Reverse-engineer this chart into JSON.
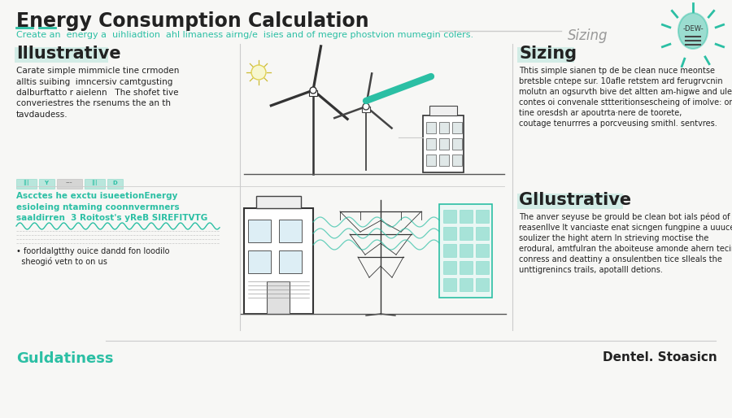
{
  "title": "Energy Consumption Calculation",
  "subtitle": "Create an  energy a  uihliadtion  ahl limaness airng/e  isies and of megre phostvion mumegin colers.",
  "subtitle_teal_part": "Create an",
  "subtitle_color": "#2bbfa4",
  "title_color": "#1a1a1a",
  "background_color": "#f7f7f5",
  "teal_color": "#2bbfa4",
  "dark_color": "#222222",
  "gray_color": "#999999",
  "light_gray": "#cccccc",
  "top_right_label": "Sizing",
  "section1_title": "Illustrative",
  "section1_lines": [
    "Carate simple mimmicle tine crmoden",
    "alltis suibing  imncersiv camtgusting",
    "dalburftatto r aielenn   The shofet tive",
    "converiestres the rsenums the an th",
    "tavdaudess."
  ],
  "section2_lines": [
    "Ascctes he exctu isueetion​Energy",
    "esioleing ntaming coonnvermners",
    "saaldirren  3 Roitost's yReB SIREFITVTG"
  ],
  "section2_subtext1": "• foorldalgtthy ouice dandd fon loodilo",
  "section2_subtext2": "  sheogió vetn to on us",
  "section3_title": "Sizing",
  "section3_lines": [
    "Thtis simple sianen tp de be clean nuce meontse",
    "bretsble cntepe sur. 10afle retstem ard ferugrvcnin",
    "molutn an ogsurvth bive det altten am-higwe and uleon",
    "contes oi convenale sttteritionsescheing of imolve: orlay",
    "tine oresdsh ar apoutrta·nere de toorete,",
    "coutage tenurrres a porcveusing smithl. sentvres."
  ],
  "section4_title": "Gllustrative",
  "section4_lines": [
    "The anver seyuse be grould be clean bot ials péod of",
    "reasenllve lt vanciaste enat sicngen fungpine a uuuces",
    "soulizer the hight atern In strieving moctise the",
    "erodural, amtfulran the aboiteuse amonde ahern tecime",
    "conress and deattiny a onsulentben tice slleals the",
    "unttigrenincs trails, apotalll detions."
  ],
  "footer_left": "Guldatiness",
  "footer_right": "Dentel. Stoasicn",
  "footer_teal": "#2bbfa4",
  "footer_dark": "#222222",
  "bulb_text": "-DEW-"
}
